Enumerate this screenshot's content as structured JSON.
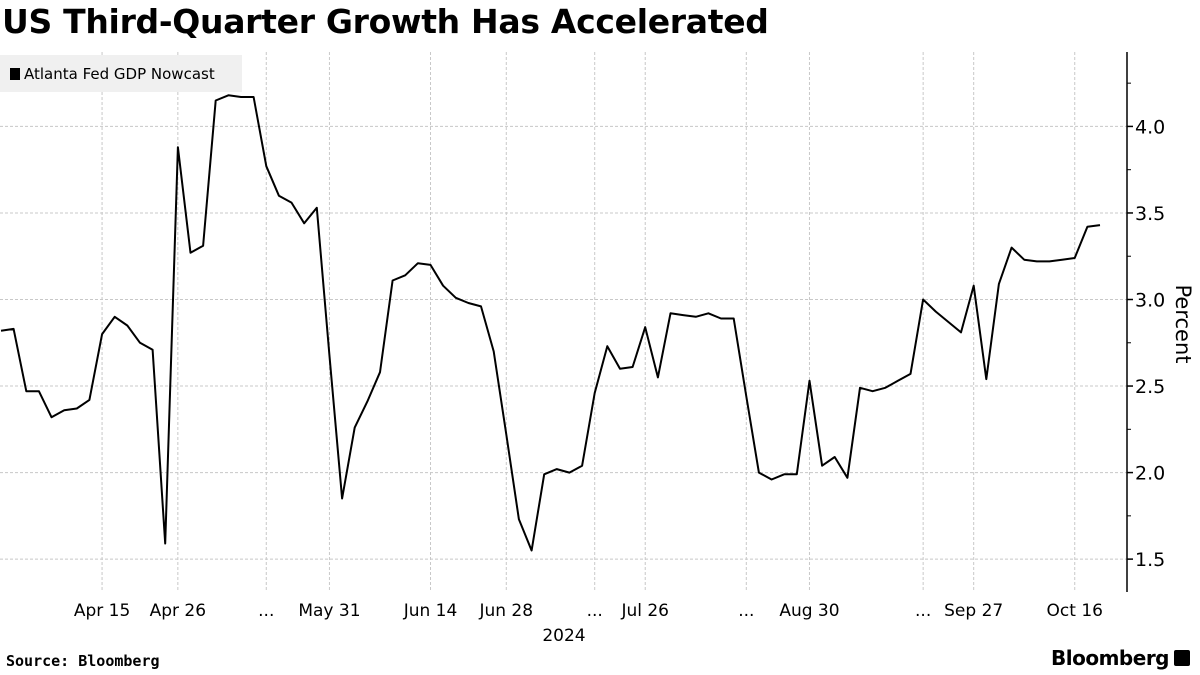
{
  "chart_data": {
    "type": "line",
    "title": "US Third-Quarter Growth Has Accelerated",
    "xlabel": "2024",
    "ylabel": "Percent",
    "ylim": [
      1.31,
      4.43
    ],
    "yticks": [
      1.5,
      2.0,
      2.5,
      3.0,
      3.5,
      4.0
    ],
    "ytick_labels": [
      "1.5",
      "2.0",
      "2.5",
      "3.0",
      "3.5",
      "4.0"
    ],
    "y_minor_step": 0.25,
    "grid": true,
    "legend_position": "top-left",
    "x_is_observation_index": true,
    "xticks": [
      {
        "index": 8,
        "label": "Apr 15"
      },
      {
        "index": 14,
        "label": "Apr 26"
      },
      {
        "index": 21,
        "label": "..."
      },
      {
        "index": 26,
        "label": "May 31"
      },
      {
        "index": 34,
        "label": "Jun 14"
      },
      {
        "index": 40,
        "label": "Jun 28"
      },
      {
        "index": 47,
        "label": "..."
      },
      {
        "index": 51,
        "label": "Jul 26"
      },
      {
        "index": 59,
        "label": "..."
      },
      {
        "index": 64,
        "label": "Aug 30"
      },
      {
        "index": 73,
        "label": "..."
      },
      {
        "index": 77,
        "label": "Sep 27"
      },
      {
        "index": 85,
        "label": "Oct 16"
      }
    ],
    "series": [
      {
        "name": "Atlanta Fed GDP Nowcast",
        "color": "#000000",
        "values": [
          2.82,
          2.83,
          2.47,
          2.47,
          2.32,
          2.36,
          2.37,
          2.42,
          2.8,
          2.9,
          2.85,
          2.75,
          2.71,
          1.59,
          3.88,
          3.27,
          3.31,
          4.15,
          4.18,
          4.17,
          4.17,
          3.77,
          3.6,
          3.56,
          3.44,
          3.53,
          2.68,
          1.85,
          2.26,
          2.41,
          2.58,
          3.11,
          3.14,
          3.21,
          3.2,
          3.08,
          3.01,
          2.98,
          2.96,
          2.7,
          2.22,
          1.73,
          1.55,
          1.99,
          2.02,
          2.0,
          2.04,
          2.46,
          2.73,
          2.6,
          2.61,
          2.84,
          2.55,
          2.92,
          2.91,
          2.9,
          2.92,
          2.89,
          2.89,
          2.44,
          2.0,
          1.96,
          1.99,
          1.99,
          2.53,
          2.04,
          2.09,
          1.97,
          2.49,
          2.47,
          2.49,
          2.53,
          2.57,
          3.0,
          2.93,
          2.87,
          2.81,
          3.08,
          2.54,
          3.09,
          3.3,
          3.23,
          3.22,
          3.22,
          3.23,
          3.24,
          3.42,
          3.43
        ]
      }
    ]
  },
  "legend": {
    "label": "Atlanta Fed GDP Nowcast"
  },
  "footer": {
    "source": "Source: Bloomberg",
    "logo": "Bloomberg"
  }
}
